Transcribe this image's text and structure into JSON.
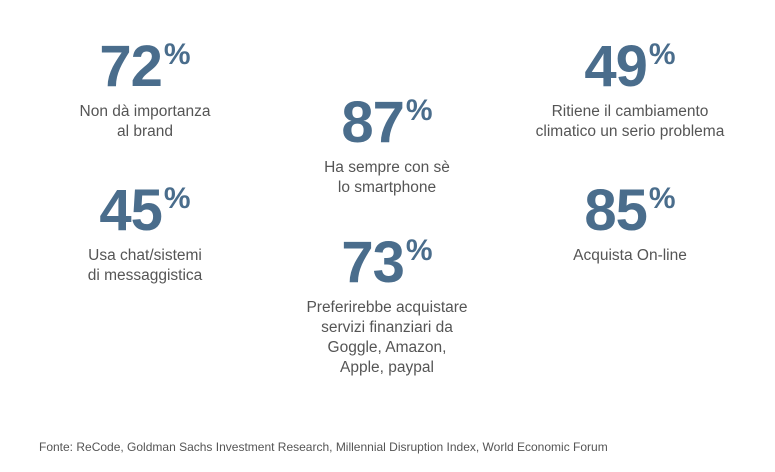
{
  "stats": [
    {
      "value": "72",
      "suffix": "%",
      "lines": [
        "Non dà importanza",
        "al brand"
      ]
    },
    {
      "value": "87",
      "suffix": "%",
      "lines": [
        "Ha sempre con sè",
        "lo smartphone"
      ]
    },
    {
      "value": "49",
      "suffix": "%",
      "lines": [
        "Ritiene il cambiamento",
        "climatico un serio problema"
      ]
    },
    {
      "value": "45",
      "suffix": "%",
      "lines": [
        "Usa chat/sistemi",
        "di messaggistica"
      ]
    },
    {
      "value": "73",
      "suffix": "%",
      "lines": [
        "Preferirebbe acquistare",
        "servizi finanziari da",
        "Goggle, Amazon,",
        "Apple, paypal"
      ]
    },
    {
      "value": "85",
      "suffix": "%",
      "lines": [
        "Acquista On-line"
      ]
    }
  ],
  "source": "Fonte: ReCode, Goldman Sachs Investment Research, Millennial Disruption Index, World Economic Forum",
  "colors": {
    "value": "#4a6d8c",
    "text": "#555555"
  }
}
